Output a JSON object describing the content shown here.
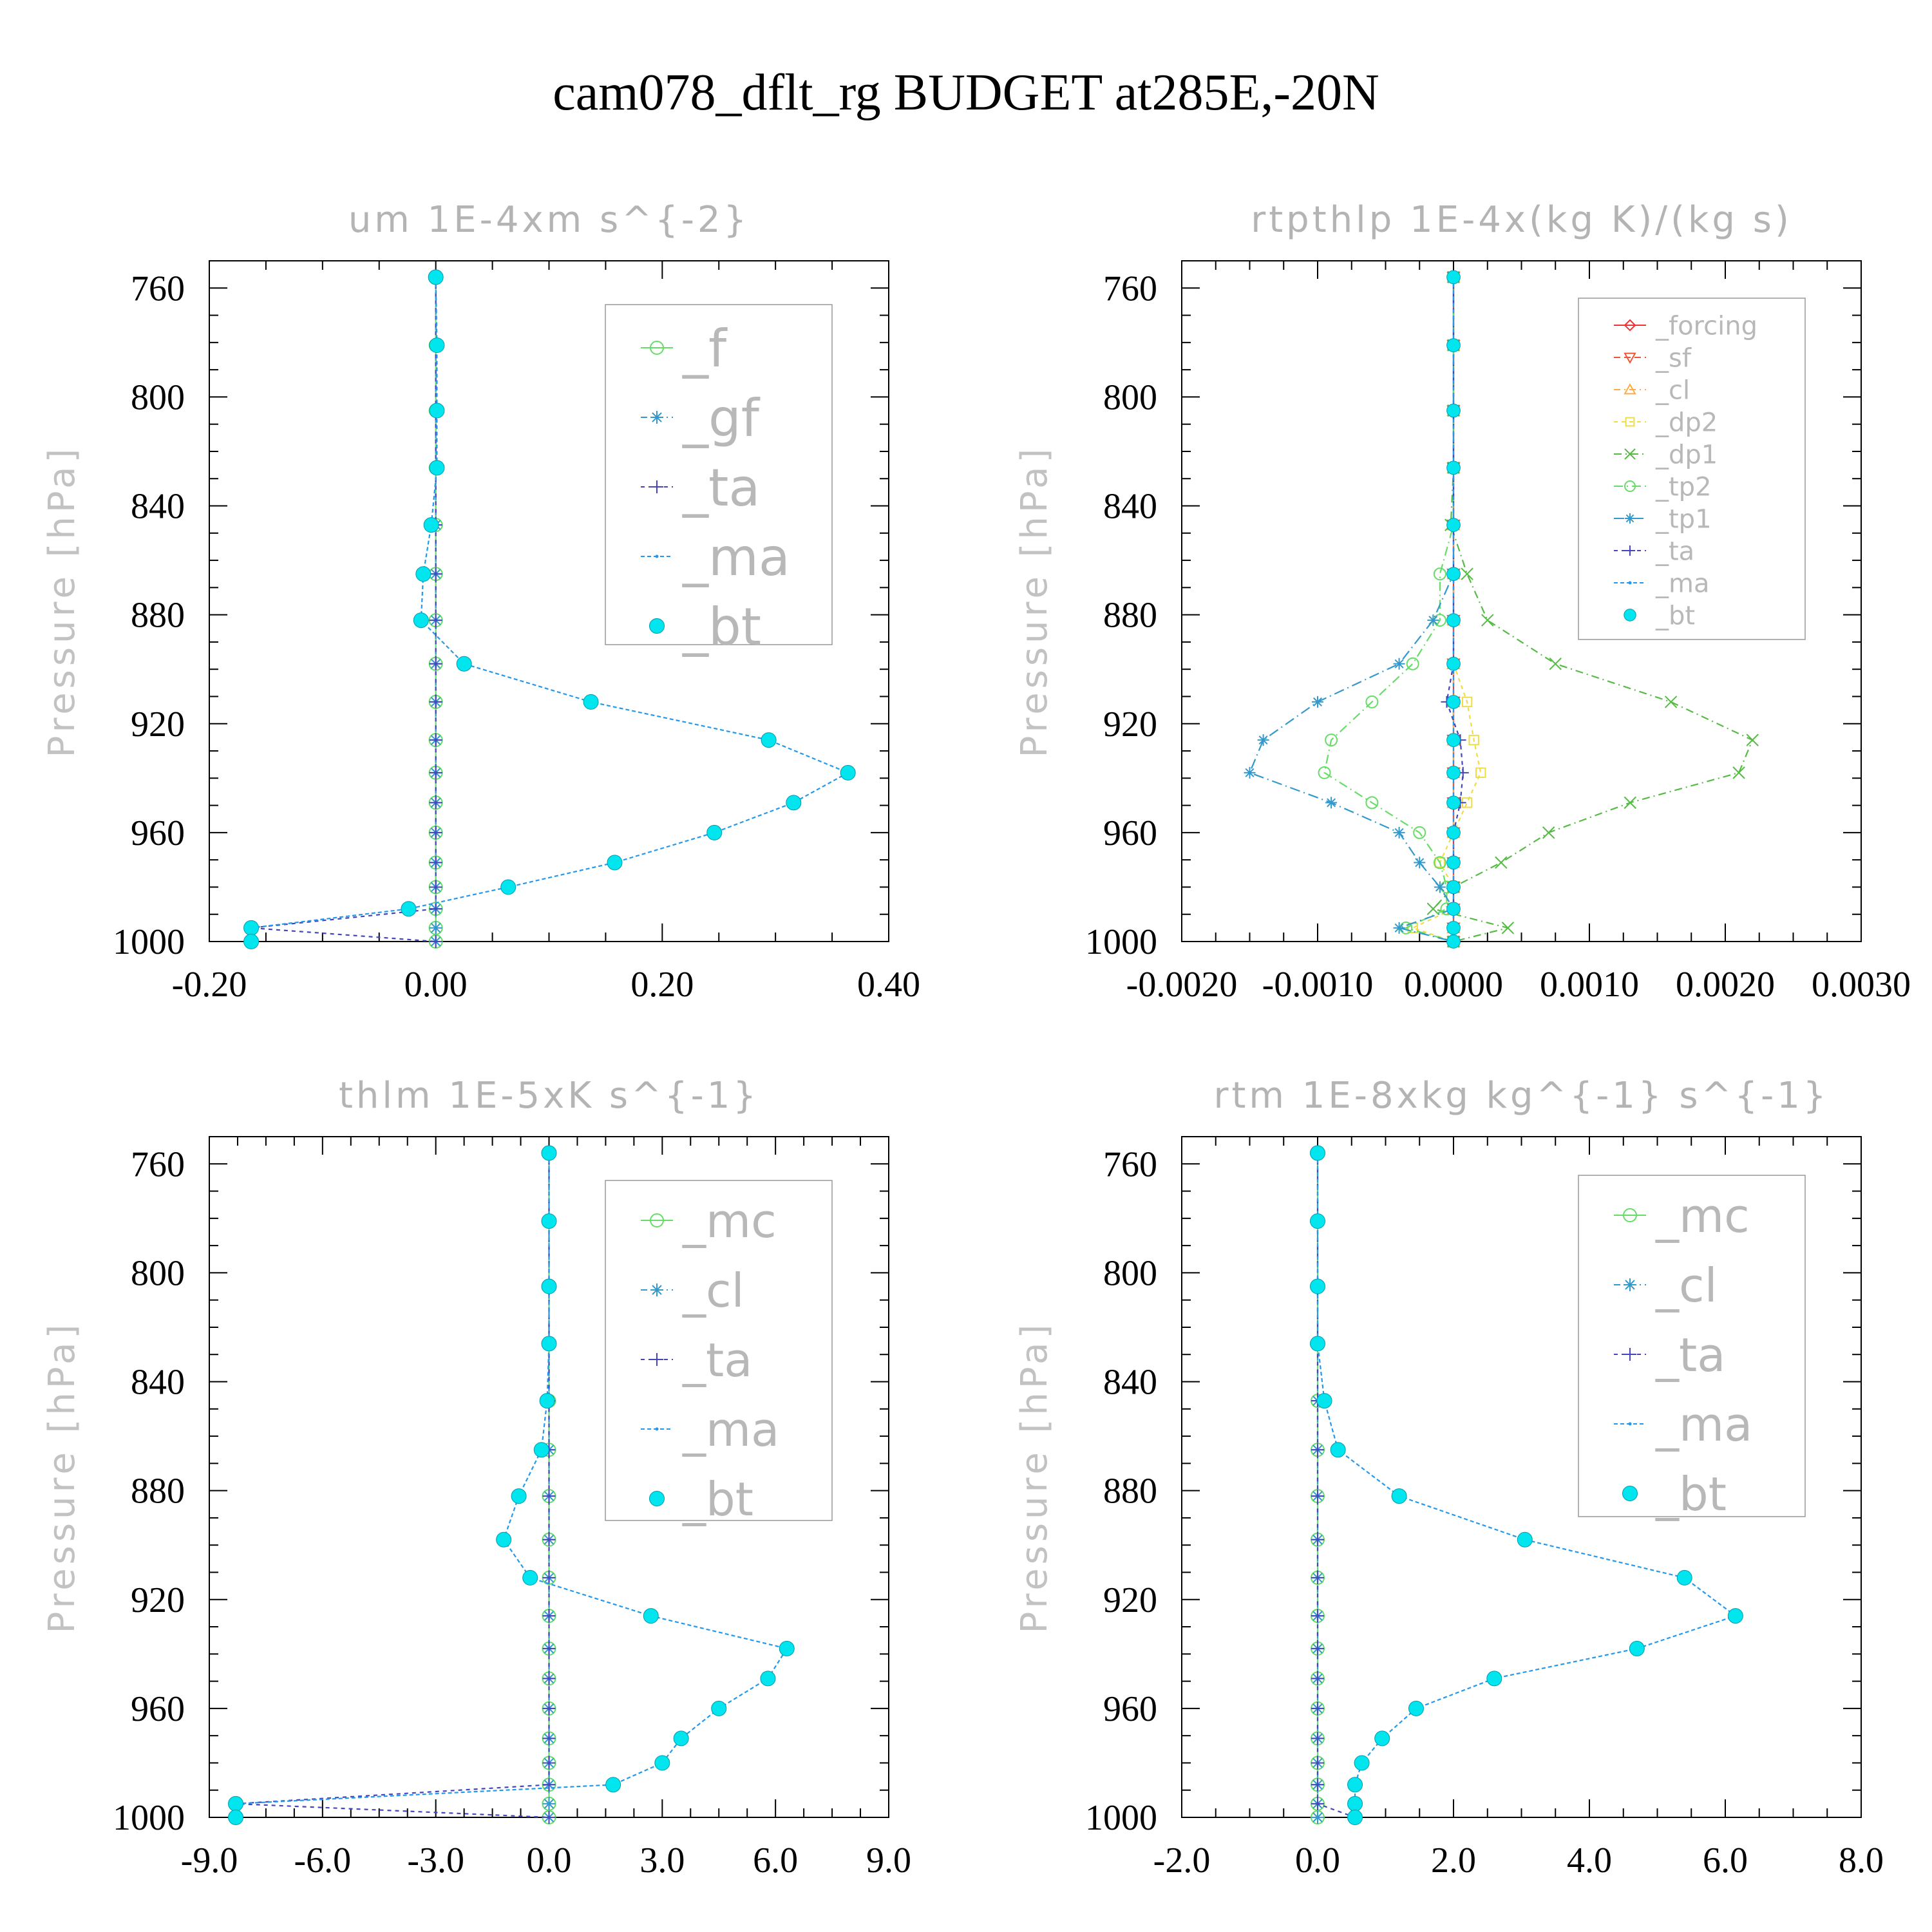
{
  "figure_title": "cam078_dflt_rg  BUDGET at285E,-20N",
  "chart_data": [
    {
      "type": "line",
      "title": "um  1E-4xm s^{-2}",
      "xlabel": "",
      "ylabel": "Pressure [hPa]",
      "xlim": [
        -0.2,
        0.4
      ],
      "ylim": [
        1000,
        750
      ],
      "xticks": [
        "-0.20",
        "0.00",
        "0.20",
        "0.40"
      ],
      "yticks": [
        "760",
        "800",
        "840",
        "880",
        "920",
        "960",
        "1000"
      ],
      "legend": "top-right",
      "pressure": [
        756,
        781,
        805,
        826,
        847,
        865,
        882,
        898,
        912,
        926,
        938,
        949,
        960,
        971,
        980,
        988,
        995,
        1000
      ],
      "series": [
        {
          "name": "_f",
          "color": "#66dd66",
          "marker": "circle-open",
          "dash": "",
          "values": [
            0,
            0,
            0,
            0,
            0,
            0,
            0,
            0,
            0,
            0,
            0,
            0,
            0,
            0,
            0,
            0,
            0,
            0
          ]
        },
        {
          "name": "_gf",
          "color": "#3399cc",
          "marker": "asterisk",
          "dash": "10,6,2,6",
          "values": [
            0,
            0,
            0,
            0,
            0,
            0,
            0,
            0,
            0,
            0,
            0,
            0,
            0,
            0,
            0,
            0,
            0,
            0
          ]
        },
        {
          "name": "_ta",
          "color": "#4444bb",
          "marker": "plus",
          "dash": "6,6",
          "values": [
            0,
            0,
            0,
            0,
            0,
            0,
            0,
            0,
            0,
            0,
            0,
            0,
            0,
            0,
            0,
            0,
            -0.163,
            0
          ]
        },
        {
          "name": "_ma",
          "color": "#2299ee",
          "marker": "dot",
          "dash": "6,4",
          "values": [
            0,
            0.001,
            0.001,
            0.001,
            -0.004,
            -0.011,
            -0.013,
            0.025,
            0.137,
            0.294,
            0.364,
            0.316,
            0.246,
            0.158,
            0.064,
            -0.024,
            -0.163,
            -0.163
          ]
        },
        {
          "name": "_bt",
          "color": "#00e5ee",
          "marker": "filled",
          "dash": "none",
          "values": [
            0,
            0.001,
            0.001,
            0.001,
            -0.004,
            -0.011,
            -0.013,
            0.025,
            0.137,
            0.294,
            0.364,
            0.316,
            0.246,
            0.158,
            0.064,
            -0.024,
            -0.163,
            -0.163
          ]
        }
      ]
    },
    {
      "type": "line",
      "title": "rtpthlp  1E-4x(kg K)/(kg s)",
      "xlabel": "",
      "ylabel": "Pressure [hPa]",
      "xlim": [
        -0.002,
        0.003
      ],
      "ylim": [
        1000,
        750
      ],
      "xticks": [
        "-0.0020",
        "-0.0010",
        "0.0000",
        "0.0010",
        "0.0020",
        "0.0030"
      ],
      "yticks": [
        "760",
        "800",
        "840",
        "880",
        "920",
        "960",
        "1000"
      ],
      "legend": "top-right",
      "pressure": [
        756,
        781,
        805,
        826,
        847,
        865,
        882,
        898,
        912,
        926,
        938,
        949,
        960,
        971,
        980,
        988,
        995,
        1000
      ],
      "series": [
        {
          "name": "_forcing",
          "color": "#ee3333",
          "marker": "diamond",
          "dash": "",
          "values": [
            0,
            0,
            0,
            0,
            0,
            0,
            0,
            0,
            0,
            0,
            0,
            0,
            0,
            0,
            0,
            0,
            0,
            0
          ]
        },
        {
          "name": "_sf",
          "color": "#ee5533",
          "marker": "tri-down",
          "dash": "10,6",
          "values": [
            0,
            0,
            0,
            0,
            0,
            0,
            0,
            0,
            0,
            0,
            0,
            0,
            0,
            0,
            0,
            0,
            0,
            0
          ]
        },
        {
          "name": "_cl",
          "color": "#ffaa44",
          "marker": "tri-up",
          "dash": "10,6,2,6",
          "values": [
            0,
            0,
            0,
            0,
            0,
            0,
            0,
            0,
            0,
            0,
            0,
            0,
            0,
            0,
            0,
            0,
            0,
            0
          ]
        },
        {
          "name": "_dp2",
          "color": "#eedd44",
          "marker": "square",
          "dash": "6,6",
          "values": [
            0,
            0,
            0,
            0,
            0,
            0,
            0,
            0,
            0.0001,
            0.00015,
            0.0002,
            0.0001,
            0,
            -0.0001,
            0,
            0,
            -0.0003,
            0
          ]
        },
        {
          "name": "_dp1",
          "color": "#55bb44",
          "marker": "cross",
          "dash": "12,6,2,6",
          "values": [
            0,
            0,
            0,
            0,
            -2e-05,
            0.0001,
            0.00025,
            0.00075,
            0.0016,
            0.0022,
            0.0021,
            0.0013,
            0.0007,
            0.00035,
            0,
            -0.00015,
            0.0004,
            0
          ]
        },
        {
          "name": "_tp2",
          "color": "#66dd66",
          "marker": "circle-open",
          "dash": "14,6,2,6",
          "values": [
            0,
            0,
            0,
            0,
            0,
            -0.0001,
            -0.0001,
            -0.0003,
            -0.0006,
            -0.0009,
            -0.00095,
            -0.0006,
            -0.00025,
            -0.0001,
            -5e-05,
            -5e-05,
            -0.00035,
            0
          ]
        },
        {
          "name": "_tp1",
          "color": "#3399cc",
          "marker": "asterisk",
          "dash": "16,6,2,6",
          "values": [
            0,
            0,
            0,
            0,
            0,
            0,
            -0.00015,
            -0.0004,
            -0.001,
            -0.0014,
            -0.0015,
            -0.0009,
            -0.0004,
            -0.00025,
            -0.0001,
            0,
            -0.0004,
            0
          ]
        },
        {
          "name": "_ta",
          "color": "#4444bb",
          "marker": "plus",
          "dash": "6,6",
          "values": [
            0,
            0,
            0,
            0,
            0,
            0,
            0,
            0,
            -5e-05,
            5e-05,
            7e-05,
            5e-05,
            0,
            0,
            0,
            0,
            0,
            0
          ]
        },
        {
          "name": "_ma",
          "color": "#2299ee",
          "marker": "dot",
          "dash": "6,4",
          "values": [
            0,
            0,
            0,
            0,
            0,
            0,
            0,
            0,
            0,
            0,
            0,
            0,
            0,
            0,
            0,
            0,
            0,
            0
          ]
        },
        {
          "name": "_bt",
          "color": "#00e5ee",
          "marker": "filled",
          "dash": "none",
          "values": [
            0,
            0,
            0,
            0,
            0,
            0,
            0,
            0,
            0,
            0,
            0,
            0,
            0,
            0,
            0,
            0,
            0,
            0
          ]
        }
      ]
    },
    {
      "type": "line",
      "title": "thlm  1E-5xK s^{-1}",
      "xlabel": "",
      "ylabel": "Pressure [hPa]",
      "xlim": [
        -9,
        9
      ],
      "ylim": [
        1000,
        750
      ],
      "xticks": [
        "-9.0",
        "-6.0",
        "-3.0",
        "0.0",
        "3.0",
        "6.0",
        "9.0"
      ],
      "yticks": [
        "760",
        "800",
        "840",
        "880",
        "920",
        "960",
        "1000"
      ],
      "legend": "top-right",
      "pressure": [
        756,
        781,
        805,
        826,
        847,
        865,
        882,
        898,
        912,
        926,
        938,
        949,
        960,
        971,
        980,
        988,
        995,
        1000
      ],
      "series": [
        {
          "name": "_mc",
          "color": "#66dd66",
          "marker": "circle-open",
          "dash": "",
          "values": [
            0,
            0,
            0,
            0,
            0,
            0,
            0,
            0,
            0,
            0,
            0,
            0,
            0,
            0,
            0,
            0,
            0,
            0
          ]
        },
        {
          "name": "_cl",
          "color": "#3399cc",
          "marker": "asterisk",
          "dash": "10,6,2,6",
          "values": [
            0,
            0,
            0,
            0,
            0,
            0,
            0,
            0,
            0,
            0,
            0,
            0,
            0,
            0,
            0,
            0,
            0,
            0
          ]
        },
        {
          "name": "_ta",
          "color": "#4444bb",
          "marker": "plus",
          "dash": "6,6",
          "values": [
            0,
            0,
            0,
            0,
            0,
            0,
            0,
            0,
            0,
            0,
            0,
            0,
            0,
            0,
            0,
            0,
            -8.3,
            0
          ]
        },
        {
          "name": "_ma",
          "color": "#2299ee",
          "marker": "dot",
          "dash": "6,4",
          "values": [
            0,
            0,
            0,
            0,
            -0.05,
            -0.2,
            -0.8,
            -1.2,
            -0.5,
            2.7,
            6.3,
            5.8,
            4.5,
            3.5,
            3.0,
            1.7,
            -8.3,
            -8.3
          ]
        },
        {
          "name": "_bt",
          "color": "#00e5ee",
          "marker": "filled",
          "dash": "none",
          "values": [
            0,
            0,
            0,
            0,
            -0.05,
            -0.2,
            -0.8,
            -1.2,
            -0.5,
            2.7,
            6.3,
            5.8,
            4.5,
            3.5,
            3.0,
            1.7,
            -8.3,
            -8.3
          ]
        }
      ]
    },
    {
      "type": "line",
      "title": "rtm  1E-8xkg kg^{-1} s^{-1}",
      "xlabel": "",
      "ylabel": "Pressure [hPa]",
      "xlim": [
        -2,
        8
      ],
      "ylim": [
        1000,
        750
      ],
      "xticks": [
        "-2.0",
        "0.0",
        "2.0",
        "4.0",
        "6.0",
        "8.0"
      ],
      "yticks": [
        "760",
        "800",
        "840",
        "880",
        "920",
        "960",
        "1000"
      ],
      "legend": "top-right",
      "pressure": [
        756,
        781,
        805,
        826,
        847,
        865,
        882,
        898,
        912,
        926,
        938,
        949,
        960,
        971,
        980,
        988,
        995,
        1000
      ],
      "series": [
        {
          "name": "_mc",
          "color": "#66dd66",
          "marker": "circle-open",
          "dash": "",
          "values": [
            0,
            0,
            0,
            0,
            0,
            0,
            0,
            0,
            0,
            0,
            0,
            0,
            0,
            0,
            0,
            0,
            0,
            0
          ]
        },
        {
          "name": "_cl",
          "color": "#3399cc",
          "marker": "asterisk",
          "dash": "10,6,2,6",
          "values": [
            0,
            0,
            0,
            0,
            0,
            0,
            0,
            0,
            0,
            0,
            0,
            0,
            0,
            0,
            0,
            0,
            0,
            0
          ]
        },
        {
          "name": "_ta",
          "color": "#4444bb",
          "marker": "plus",
          "dash": "6,6",
          "values": [
            0,
            0,
            0,
            0,
            0,
            0,
            0,
            0,
            0,
            0,
            0,
            0,
            0,
            0,
            0,
            0,
            0,
            0.55
          ]
        },
        {
          "name": "_ma",
          "color": "#2299ee",
          "marker": "dot",
          "dash": "6,4",
          "values": [
            0,
            0,
            0,
            0,
            0.1,
            0.3,
            1.2,
            3.05,
            5.4,
            6.15,
            4.7,
            2.6,
            1.45,
            0.95,
            0.65,
            0.55,
            0.55,
            0.55
          ]
        },
        {
          "name": "_bt",
          "color": "#00e5ee",
          "marker": "filled",
          "dash": "none",
          "values": [
            0,
            0,
            0,
            0,
            0.1,
            0.3,
            1.2,
            3.05,
            5.4,
            6.15,
            4.7,
            2.6,
            1.45,
            0.95,
            0.65,
            0.55,
            0.55,
            0.55
          ]
        }
      ]
    }
  ]
}
